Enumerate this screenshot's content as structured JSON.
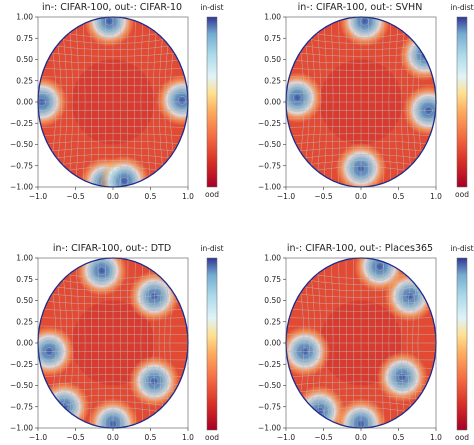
{
  "figure": {
    "panels": [
      {
        "title": "in-: CIFAR-100, out-: CIFAR-10",
        "colorbar_top": "in-dist",
        "colorbar_bottom": "ood"
      },
      {
        "title": "in-: CIFAR-100, out-: SVHN",
        "colorbar_top": "in-dist",
        "colorbar_bottom": "ood"
      },
      {
        "title": "in-: CIFAR-100, out-: DTD",
        "colorbar_top": "in-dist",
        "colorbar_bottom": "ood"
      },
      {
        "title": "in-: CIFAR-100, out-: Places365",
        "colorbar_top": "in-dist",
        "colorbar_bottom": "ood"
      }
    ]
  },
  "chart_data": [
    {
      "type": "heatmap",
      "title": "in-: CIFAR-100, out-: CIFAR-10",
      "x_ticks": [
        "−1.0",
        "−0.5",
        "0.0",
        "0.5",
        "1.0"
      ],
      "y_ticks": [
        "1.00",
        "0.75",
        "0.50",
        "0.25",
        "0.00",
        "−0.25",
        "−0.50",
        "−0.75",
        "−1.00"
      ],
      "xlim": [
        -1.0,
        1.0
      ],
      "ylim": [
        -1.0,
        1.0
      ],
      "colorbar": {
        "top_label": "in-dist",
        "bottom_label": "ood",
        "colormap": "RdYlBu"
      },
      "domain": "unit disk (Poincaré ball) with hyperbolic grid lines",
      "in_dist_regions": [
        {
          "x": -0.95,
          "y": 0.0
        },
        {
          "x": 0.92,
          "y": 0.02
        },
        {
          "x": -0.1,
          "y": -0.95
        },
        {
          "x": 0.15,
          "y": -0.93
        },
        {
          "x": -0.05,
          "y": 0.95
        }
      ]
    },
    {
      "type": "heatmap",
      "title": "in-: CIFAR-100, out-: SVHN",
      "x_ticks": [
        "−1.0",
        "−0.5",
        "0.0",
        "0.5",
        "1.0"
      ],
      "y_ticks": [
        "1.00",
        "0.75",
        "0.50",
        "0.25",
        "0.00",
        "−0.25",
        "−0.50",
        "−0.75",
        "−1.00"
      ],
      "xlim": [
        -1.0,
        1.0
      ],
      "ylim": [
        -1.0,
        1.0
      ],
      "colorbar": {
        "top_label": "in-dist",
        "bottom_label": "ood",
        "colormap": "RdYlBu"
      },
      "domain": "unit disk (Poincaré ball) with hyperbolic grid lines",
      "in_dist_regions": [
        {
          "x": -0.85,
          "y": 0.05
        },
        {
          "x": 0.85,
          "y": 0.55
        },
        {
          "x": 0.9,
          "y": -0.1
        },
        {
          "x": 0.0,
          "y": -0.78
        },
        {
          "x": 0.05,
          "y": 0.95
        }
      ]
    },
    {
      "type": "heatmap",
      "title": "in-: CIFAR-100, out-: DTD",
      "x_ticks": [
        "−1.0",
        "−0.5",
        "0.0",
        "0.5",
        "1.0"
      ],
      "y_ticks": [
        "1.00",
        "0.75",
        "0.50",
        "0.25",
        "0.00",
        "−0.25",
        "−0.50",
        "−0.75",
        "−1.00"
      ],
      "xlim": [
        -1.0,
        1.0
      ],
      "ylim": [
        -1.0,
        1.0
      ],
      "colorbar": {
        "top_label": "in-dist",
        "bottom_label": "ood",
        "colormap": "RdYlBu"
      },
      "domain": "unit disk (Poincaré ball) with hyperbolic grid lines",
      "in_dist_regions": [
        {
          "x": 0.55,
          "y": 0.55
        },
        {
          "x": 0.55,
          "y": -0.45
        },
        {
          "x": -0.85,
          "y": -0.1
        },
        {
          "x": -0.15,
          "y": 0.85
        },
        {
          "x": 0.0,
          "y": -0.95
        },
        {
          "x": -0.65,
          "y": -0.75
        }
      ]
    },
    {
      "type": "heatmap",
      "title": "in-: CIFAR-100, out-: Places365",
      "x_ticks": [
        "−1.0",
        "−0.5",
        "0.0",
        "0.5",
        "1.0"
      ],
      "y_ticks": [
        "1.00",
        "0.75",
        "0.50",
        "0.25",
        "0.00",
        "−0.25",
        "−0.50",
        "−0.75",
        "−1.00"
      ],
      "xlim": [
        -1.0,
        1.0
      ],
      "ylim": [
        -1.0,
        1.0
      ],
      "colorbar": {
        "top_label": "in-dist",
        "bottom_label": "ood",
        "colormap": "RdYlBu"
      },
      "domain": "unit disk (Poincaré ball) with hyperbolic grid lines",
      "in_dist_regions": [
        {
          "x": 0.65,
          "y": 0.55
        },
        {
          "x": 0.55,
          "y": -0.4
        },
        {
          "x": -0.75,
          "y": -0.1
        },
        {
          "x": -0.55,
          "y": -0.8
        },
        {
          "x": 0.25,
          "y": 0.9
        },
        {
          "x": 0.0,
          "y": -0.95
        }
      ]
    }
  ]
}
